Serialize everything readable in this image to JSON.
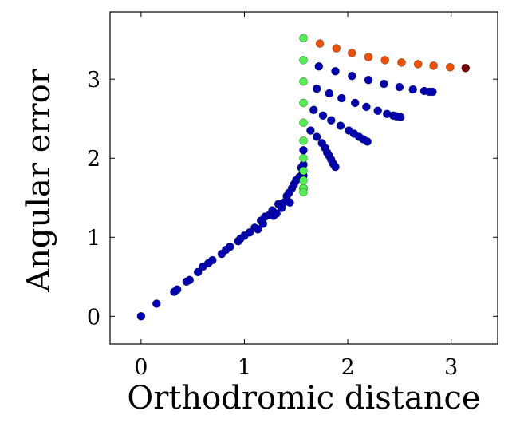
{
  "chart_data": {
    "type": "scatter",
    "xlabel": "Orthodromic distance",
    "ylabel": "Angular error",
    "xlim": [
      -0.3,
      3.45
    ],
    "ylim": [
      -0.35,
      3.85
    ],
    "x_ticks": [
      0,
      1,
      2,
      3
    ],
    "y_ticks": [
      0,
      1,
      2,
      3
    ],
    "grid": false,
    "series": [
      {
        "color": "#0000b4",
        "points": [
          [
            0.0,
            0.0
          ],
          [
            0.15,
            0.16
          ],
          [
            0.32,
            0.31
          ],
          [
            0.35,
            0.34
          ],
          [
            0.44,
            0.44
          ],
          [
            0.47,
            0.46
          ],
          [
            0.55,
            0.56
          ],
          [
            0.6,
            0.63
          ],
          [
            0.65,
            0.67
          ],
          [
            0.69,
            0.71
          ],
          [
            0.78,
            0.79
          ],
          [
            0.82,
            0.84
          ],
          [
            0.86,
            0.88
          ],
          [
            0.94,
            0.95
          ],
          [
            0.96,
            0.98
          ],
          [
            1.0,
            1.02
          ],
          [
            1.05,
            1.06
          ],
          [
            1.1,
            1.12
          ],
          [
            1.13,
            1.1
          ],
          [
            1.16,
            1.21
          ],
          [
            1.18,
            1.17
          ],
          [
            1.2,
            1.26
          ],
          [
            1.24,
            1.28
          ],
          [
            1.27,
            1.34
          ],
          [
            1.28,
            1.27
          ],
          [
            1.31,
            1.3
          ],
          [
            1.33,
            1.42
          ],
          [
            1.36,
            1.37
          ],
          [
            1.38,
            1.44
          ],
          [
            1.41,
            1.52
          ],
          [
            1.43,
            1.56
          ],
          [
            1.44,
            1.44
          ],
          [
            1.46,
            1.62
          ],
          [
            1.48,
            1.67
          ],
          [
            1.5,
            1.72
          ],
          [
            1.53,
            1.76
          ],
          [
            1.55,
            1.88
          ],
          [
            1.56,
            1.8
          ],
          [
            1.571,
            2.1
          ],
          [
            1.571,
            1.92
          ],
          [
            1.571,
            1.78
          ],
          [
            1.571,
            1.62
          ],
          [
            1.64,
            2.35
          ],
          [
            1.7,
            2.27
          ],
          [
            1.75,
            2.19
          ],
          [
            1.78,
            2.13
          ],
          [
            1.8,
            2.07
          ],
          [
            1.82,
            2.03
          ],
          [
            1.84,
            1.98
          ],
          [
            1.86,
            1.93
          ],
          [
            1.88,
            1.89
          ],
          [
            1.67,
            2.61
          ],
          [
            1.76,
            2.54
          ],
          [
            1.84,
            2.48
          ],
          [
            1.93,
            2.41
          ],
          [
            2.01,
            2.35
          ],
          [
            2.06,
            2.31
          ],
          [
            2.11,
            2.27
          ],
          [
            2.15,
            2.24
          ],
          [
            2.19,
            2.21
          ],
          [
            1.7,
            2.88
          ],
          [
            1.82,
            2.82
          ],
          [
            1.94,
            2.76
          ],
          [
            2.07,
            2.7
          ],
          [
            2.18,
            2.65
          ],
          [
            2.29,
            2.6
          ],
          [
            2.38,
            2.56
          ],
          [
            2.44,
            2.54
          ],
          [
            2.47,
            2.53
          ],
          [
            2.51,
            2.52
          ],
          [
            1.72,
            3.16
          ],
          [
            1.88,
            3.1
          ],
          [
            2.04,
            3.04
          ],
          [
            2.2,
            2.99
          ],
          [
            2.35,
            2.94
          ],
          [
            2.5,
            2.9
          ],
          [
            2.63,
            2.87
          ],
          [
            2.74,
            2.85
          ],
          [
            2.79,
            2.84
          ],
          [
            2.82,
            2.84
          ]
        ]
      },
      {
        "color": "#50f050",
        "points": [
          [
            1.571,
            3.52
          ],
          [
            1.571,
            3.24
          ],
          [
            1.571,
            2.97
          ],
          [
            1.571,
            2.7
          ],
          [
            1.571,
            2.45
          ],
          [
            1.571,
            2.22
          ],
          [
            1.571,
            2.0
          ],
          [
            1.571,
            1.84
          ],
          [
            1.571,
            1.72
          ],
          [
            1.571,
            1.62
          ],
          [
            1.571,
            1.57
          ]
        ]
      },
      {
        "color": "#f05000",
        "points": [
          [
            1.73,
            3.45
          ],
          [
            1.89,
            3.39
          ],
          [
            2.04,
            3.33
          ],
          [
            2.2,
            3.28
          ],
          [
            2.36,
            3.24
          ],
          [
            2.52,
            3.21
          ],
          [
            2.68,
            3.19
          ],
          [
            2.83,
            3.17
          ],
          [
            2.99,
            3.15
          ]
        ]
      },
      {
        "color": "#7a0000",
        "points": [
          [
            3.14,
            3.14
          ]
        ]
      }
    ]
  }
}
